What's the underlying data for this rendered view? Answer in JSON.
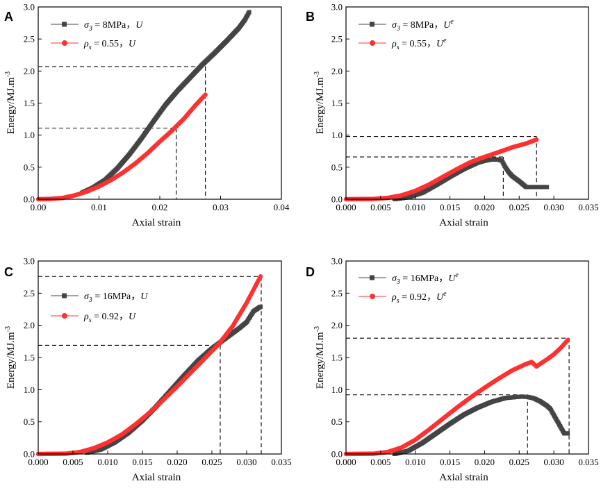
{
  "colors": {
    "black_series": "#444444",
    "red_series": "#ff3030",
    "guide": "#000000"
  },
  "chart_data": [
    {
      "panel": "A",
      "type": "scatter",
      "xlabel": "Axial strain",
      "ylabel": "Energy/MJ.m",
      "ylabel_sup": "-3",
      "xlim": [
        0,
        0.04
      ],
      "ylim": [
        0,
        3.0
      ],
      "xticks": [
        "0.00",
        "0.01",
        "0.02",
        "0.03",
        "0.04"
      ],
      "xtick_values": [
        0,
        0.01,
        0.02,
        0.03,
        0.04
      ],
      "yticks": [
        "0.0",
        "0.5",
        "1.0",
        "1.5",
        "2.0",
        "2.5",
        "3.0"
      ],
      "ytick_values": [
        0,
        0.5,
        1.0,
        1.5,
        2.0,
        2.5,
        3.0
      ],
      "series": [
        {
          "name": "σ₃ = 8MPa，U",
          "sym": "σ",
          "sub": "3",
          "rest": " = 8MPa，",
          "var": "U",
          "sup": "",
          "color": "black",
          "marker": "square",
          "x": [
            0.0072,
            0.009,
            0.011,
            0.013,
            0.015,
            0.017,
            0.019,
            0.021,
            0.023,
            0.025,
            0.027,
            0.029,
            0.031,
            0.032,
            0.033,
            0.034,
            0.0347
          ],
          "y": [
            0.1,
            0.18,
            0.3,
            0.48,
            0.7,
            0.95,
            1.22,
            1.48,
            1.7,
            1.9,
            2.1,
            2.28,
            2.47,
            2.57,
            2.67,
            2.8,
            2.92
          ]
        },
        {
          "name": "ρs = 0.55，U",
          "sym": "ρ",
          "sub": "s",
          "rest": " = 0.55，",
          "var": "U",
          "sup": "",
          "color": "red",
          "marker": "circle",
          "x": [
            0,
            0.002,
            0.004,
            0.006,
            0.008,
            0.01,
            0.012,
            0.014,
            0.016,
            0.018,
            0.02,
            0.022,
            0.024,
            0.026,
            0.0275
          ],
          "y": [
            0,
            0.005,
            0.02,
            0.06,
            0.12,
            0.2,
            0.3,
            0.42,
            0.56,
            0.72,
            0.9,
            1.07,
            1.26,
            1.48,
            1.63
          ]
        }
      ],
      "guides": [
        {
          "x": 0.0227,
          "y": 1.11
        },
        {
          "x": 0.0275,
          "y": 2.07
        }
      ]
    },
    {
      "panel": "B",
      "type": "scatter",
      "xlabel": "Axial strain",
      "ylabel": "Energy/MJ.m",
      "ylabel_sup": "-3",
      "xlim": [
        0,
        0.035
      ],
      "ylim": [
        0,
        3.0
      ],
      "xticks": [
        "0.000",
        "0.005",
        "0.010",
        "0.015",
        "0.020",
        "0.025",
        "0.030",
        "0.035"
      ],
      "xtick_values": [
        0,
        0.005,
        0.01,
        0.015,
        0.02,
        0.025,
        0.03,
        0.035
      ],
      "yticks": [
        "0.0",
        "0.5",
        "1.0",
        "1.5",
        "2.0",
        "2.5",
        "3.0"
      ],
      "ytick_values": [
        0,
        0.5,
        1.0,
        1.5,
        2.0,
        2.5,
        3.0
      ],
      "series": [
        {
          "name": "σ₃ = 8MPa，Uᵉ",
          "sym": "σ",
          "sub": "3",
          "rest": " = 8MPa，",
          "var": "U",
          "sup": "e",
          "color": "black",
          "marker": "square",
          "x": [
            0.007,
            0.009,
            0.011,
            0.013,
            0.015,
            0.017,
            0.019,
            0.02,
            0.021,
            0.0215,
            0.022,
            0.0225,
            0.023,
            0.0235,
            0.024,
            0.025,
            0.026,
            0.027,
            0.028,
            0.029
          ],
          "y": [
            0,
            0.03,
            0.1,
            0.22,
            0.35,
            0.47,
            0.57,
            0.6,
            0.62,
            0.62,
            0.62,
            0.6,
            0.5,
            0.42,
            0.36,
            0.28,
            0.19,
            0.19,
            0.19,
            0.19
          ]
        },
        {
          "name": "ρs = 0.55，Uᵉ",
          "sym": "ρ",
          "sub": "s",
          "rest": " = 0.55，",
          "var": "U",
          "sup": "e",
          "color": "red",
          "marker": "circle",
          "x": [
            0,
            0.004,
            0.006,
            0.008,
            0.01,
            0.012,
            0.014,
            0.016,
            0.018,
            0.02,
            0.0227,
            0.024,
            0.026,
            0.0275
          ],
          "y": [
            0,
            0.005,
            0.02,
            0.06,
            0.13,
            0.23,
            0.35,
            0.47,
            0.58,
            0.66,
            0.76,
            0.81,
            0.87,
            0.93
          ]
        }
      ],
      "guides": [
        {
          "x": 0.0227,
          "y": 0.66
        },
        {
          "x": 0.0275,
          "y": 0.98
        }
      ]
    },
    {
      "panel": "C",
      "type": "scatter",
      "xlabel": "Axial strain",
      "ylabel": "Energy/MJ.m",
      "ylabel_sup": "-3",
      "xlim": [
        0,
        0.035
      ],
      "ylim": [
        0,
        3.0
      ],
      "xticks": [
        "0.000",
        "0.005",
        "0.010",
        "0.015",
        "0.020",
        "0.025",
        "0.030",
        "0.035"
      ],
      "xtick_values": [
        0,
        0.005,
        0.01,
        0.015,
        0.02,
        0.025,
        0.03,
        0.035
      ],
      "yticks": [
        "0.0",
        "0.5",
        "1.0",
        "1.5",
        "2.0",
        "2.5",
        "3.0"
      ],
      "ytick_values": [
        0,
        0.5,
        1.0,
        1.5,
        2.0,
        2.5,
        3.0
      ],
      "series": [
        {
          "name": "σ₃ = 16MPa，U",
          "sym": "σ",
          "sub": "3",
          "rest": " = 16MPa，",
          "var": "U",
          "sup": "",
          "color": "black",
          "marker": "square",
          "x": [
            0.007,
            0.009,
            0.011,
            0.013,
            0.015,
            0.017,
            0.019,
            0.021,
            0.023,
            0.025,
            0.026,
            0.027,
            0.028,
            0.029,
            0.03,
            0.031,
            0.032
          ],
          "y": [
            0.02,
            0.07,
            0.18,
            0.33,
            0.52,
            0.74,
            0.98,
            1.22,
            1.45,
            1.64,
            1.72,
            1.8,
            1.88,
            1.96,
            2.05,
            2.22,
            2.29
          ]
        },
        {
          "name": "ρs = 0.92，U",
          "sym": "ρ",
          "sub": "s",
          "rest": " = 0.92，",
          "var": "U",
          "sup": "",
          "color": "red",
          "marker": "circle",
          "x": [
            0,
            0.004,
            0.006,
            0.008,
            0.01,
            0.012,
            0.014,
            0.016,
            0.018,
            0.02,
            0.022,
            0.024,
            0.026,
            0.028,
            0.03,
            0.032
          ],
          "y": [
            0,
            0.005,
            0.03,
            0.09,
            0.18,
            0.3,
            0.46,
            0.64,
            0.84,
            1.05,
            1.27,
            1.49,
            1.71,
            1.99,
            2.35,
            2.76
          ]
        }
      ],
      "guides": [
        {
          "x": 0.0262,
          "y": 1.69
        },
        {
          "x": 0.0321,
          "y": 2.76
        }
      ]
    },
    {
      "panel": "D",
      "type": "scatter",
      "xlabel": "Axial strain",
      "ylabel": "Energy/MJ.m",
      "ylabel_sup": "-3",
      "xlim": [
        0,
        0.035
      ],
      "ylim": [
        0,
        3.0
      ],
      "xticks": [
        "0.000",
        "0.005",
        "0.010",
        "0.015",
        "0.020",
        "0.025",
        "0.030",
        "0.035"
      ],
      "xtick_values": [
        0,
        0.005,
        0.01,
        0.015,
        0.02,
        0.025,
        0.03,
        0.035
      ],
      "yticks": [
        "0.0",
        "0.5",
        "1.0",
        "1.5",
        "2.0",
        "2.5",
        "3.0"
      ],
      "ytick_values": [
        0,
        0.5,
        1.0,
        1.5,
        2.0,
        2.5,
        3.0
      ],
      "series": [
        {
          "name": "σ₃ = 16MPa，Uᵉ",
          "sym": "σ",
          "sub": "3",
          "rest": " = 16MPa，",
          "var": "U",
          "sup": "e",
          "color": "black",
          "marker": "square",
          "x": [
            0.007,
            0.009,
            0.011,
            0.013,
            0.015,
            0.017,
            0.019,
            0.021,
            0.023,
            0.025,
            0.026,
            0.027,
            0.028,
            0.029,
            0.0295,
            0.0315,
            0.032
          ],
          "y": [
            0,
            0.05,
            0.17,
            0.32,
            0.47,
            0.61,
            0.72,
            0.81,
            0.87,
            0.89,
            0.89,
            0.87,
            0.82,
            0.75,
            0.7,
            0.32,
            0.32
          ]
        },
        {
          "name": "ρs = 0.92，Uᵉ",
          "sym": "ρ",
          "sub": "s",
          "rest": " = 0.92，",
          "var": "U",
          "sup": "e",
          "color": "red",
          "marker": "circle",
          "x": [
            0,
            0.004,
            0.006,
            0.008,
            0.01,
            0.012,
            0.014,
            0.016,
            0.018,
            0.02,
            0.022,
            0.024,
            0.026,
            0.0268,
            0.0275,
            0.028,
            0.029,
            0.03,
            0.031,
            0.032
          ],
          "y": [
            0,
            0.005,
            0.03,
            0.1,
            0.22,
            0.38,
            0.55,
            0.72,
            0.88,
            1.03,
            1.17,
            1.3,
            1.4,
            1.43,
            1.36,
            1.4,
            1.47,
            1.55,
            1.65,
            1.77
          ]
        }
      ],
      "guides": [
        {
          "x": 0.0262,
          "y": 0.92
        },
        {
          "x": 0.0322,
          "y": 1.8
        }
      ]
    }
  ]
}
